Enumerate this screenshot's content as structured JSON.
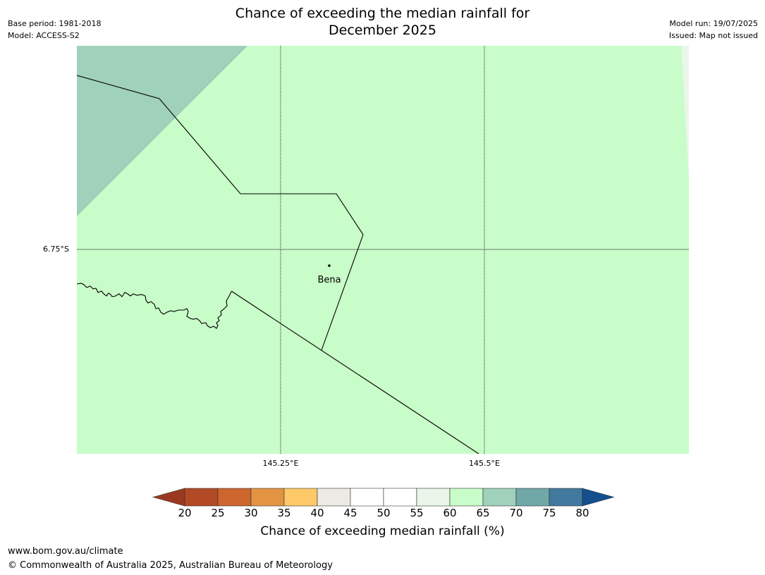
{
  "header": {
    "title_line1": "Chance of exceeding the median rainfall for",
    "title_line2": "December 2025",
    "base_period": "Base period: 1981-2018",
    "model": "Model: ACCESS-S2",
    "model_run": "Model run: 19/07/2025",
    "issued": "Issued: Map not issued"
  },
  "map": {
    "lat_label": "6.75°S",
    "lon_labels": [
      "145.25°E",
      "145.5°E"
    ],
    "place_label": "Bena",
    "colors": {
      "category_65_70": "#9fd1bb",
      "category_60_65": "#c8fcc8",
      "category_55_60": "#eaf6ea"
    }
  },
  "colorbar": {
    "title": "Chance of exceeding median rainfall (%)",
    "tick_labels": [
      "20",
      "25",
      "30",
      "35",
      "40",
      "45",
      "50",
      "55",
      "60",
      "65",
      "70",
      "75",
      "80"
    ],
    "under_color": "#9b3920",
    "over_color": "#14508d",
    "colors": [
      "#b24a26",
      "#cd652f",
      "#e39443",
      "#fec969",
      "#ede9e4",
      "#ffffff",
      "#ffffff",
      "#eaf6ea",
      "#c8fcc8",
      "#9fd1bb",
      "#70a8a8",
      "#42799e"
    ]
  },
  "footer": {
    "url": "www.bom.gov.au/climate",
    "copyright": "© Commonwealth of Australia 2025, Australian Bureau of Meteorology"
  }
}
